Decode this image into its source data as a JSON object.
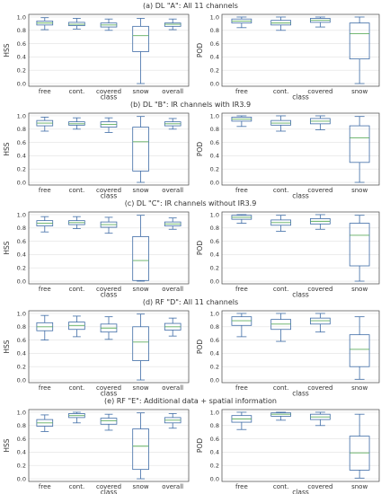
{
  "figure": {
    "rows": [
      {
        "title": "(a) DL \"A\": All 11 channels",
        "panels": [
          {
            "ylabel": "HSS",
            "xlabel": "class",
            "categories": [
              "free",
              "cont.",
              "covered",
              "snow",
              "overall"
            ],
            "boxes": [
              {
                "whislo": 0.81,
                "q1": 0.88,
                "med": 0.91,
                "q3": 0.94,
                "whishi": 0.99
              },
              {
                "whislo": 0.82,
                "q1": 0.87,
                "med": 0.89,
                "q3": 0.92,
                "whishi": 0.98
              },
              {
                "whislo": 0.8,
                "q1": 0.85,
                "med": 0.88,
                "q3": 0.91,
                "whishi": 0.97
              },
              {
                "whislo": 0.0,
                "q1": 0.48,
                "med": 0.72,
                "q3": 0.86,
                "whishi": 0.98
              },
              {
                "whislo": 0.81,
                "q1": 0.86,
                "med": 0.89,
                "q3": 0.91,
                "whishi": 0.97
              }
            ]
          },
          {
            "ylabel": "POD",
            "xlabel": "class",
            "categories": [
              "free",
              "cont.",
              "covered",
              "snow"
            ],
            "boxes": [
              {
                "whislo": 0.84,
                "q1": 0.91,
                "med": 0.94,
                "q3": 0.97,
                "whishi": 1.0
              },
              {
                "whislo": 0.8,
                "q1": 0.88,
                "med": 0.91,
                "q3": 0.95,
                "whishi": 1.0
              },
              {
                "whislo": 0.85,
                "q1": 0.92,
                "med": 0.95,
                "q3": 0.98,
                "whishi": 1.0
              },
              {
                "whislo": 0.0,
                "q1": 0.37,
                "med": 0.75,
                "q3": 0.91,
                "whishi": 1.0
              }
            ]
          }
        ]
      },
      {
        "title": "(b) DL \"B\": IR channels with IR3.9",
        "panels": [
          {
            "ylabel": "HSS",
            "xlabel": "class",
            "categories": [
              "free",
              "cont.",
              "covered",
              "snow",
              "overall"
            ],
            "boxes": [
              {
                "whislo": 0.77,
                "q1": 0.85,
                "med": 0.89,
                "q3": 0.93,
                "whishi": 0.98
              },
              {
                "whislo": 0.8,
                "q1": 0.86,
                "med": 0.88,
                "q3": 0.91,
                "whishi": 0.97
              },
              {
                "whislo": 0.75,
                "q1": 0.83,
                "med": 0.87,
                "q3": 0.91,
                "whishi": 0.97
              },
              {
                "whislo": 0.0,
                "q1": 0.17,
                "med": 0.61,
                "q3": 0.83,
                "whishi": 0.99
              },
              {
                "whislo": 0.8,
                "q1": 0.85,
                "med": 0.88,
                "q3": 0.91,
                "whishi": 0.96
              }
            ]
          },
          {
            "ylabel": "POD",
            "xlabel": "class",
            "categories": [
              "free",
              "cont.",
              "covered",
              "snow"
            ],
            "boxes": [
              {
                "whislo": 0.84,
                "q1": 0.92,
                "med": 0.95,
                "q3": 0.98,
                "whishi": 1.0
              },
              {
                "whislo": 0.77,
                "q1": 0.86,
                "med": 0.89,
                "q3": 0.93,
                "whishi": 1.0
              },
              {
                "whislo": 0.79,
                "q1": 0.88,
                "med": 0.92,
                "q3": 0.96,
                "whishi": 1.0
              },
              {
                "whislo": 0.0,
                "q1": 0.3,
                "med": 0.67,
                "q3": 0.85,
                "whishi": 0.99
              }
            ]
          }
        ]
      },
      {
        "title": "(c) DL \"C\": IR channels without IR3.9",
        "panels": [
          {
            "ylabel": "HSS",
            "xlabel": "class",
            "categories": [
              "free",
              "cont.",
              "covered",
              "snow",
              "overall"
            ],
            "boxes": [
              {
                "whislo": 0.74,
                "q1": 0.83,
                "med": 0.87,
                "q3": 0.91,
                "whishi": 0.97
              },
              {
                "whislo": 0.79,
                "q1": 0.85,
                "med": 0.88,
                "q3": 0.91,
                "whishi": 0.97
              },
              {
                "whislo": 0.72,
                "q1": 0.81,
                "med": 0.85,
                "q3": 0.89,
                "whishi": 0.96
              },
              {
                "whislo": 0.0,
                "q1": 0.01,
                "med": 0.31,
                "q3": 0.67,
                "whishi": 0.99
              },
              {
                "whislo": 0.78,
                "q1": 0.83,
                "med": 0.86,
                "q3": 0.89,
                "whishi": 0.95
              }
            ]
          },
          {
            "ylabel": "POD",
            "xlabel": "class",
            "categories": [
              "free",
              "cont.",
              "covered",
              "snow"
            ],
            "boxes": [
              {
                "whislo": 0.87,
                "q1": 0.93,
                "med": 0.96,
                "q3": 0.99,
                "whishi": 1.0
              },
              {
                "whislo": 0.75,
                "q1": 0.84,
                "med": 0.88,
                "q3": 0.92,
                "whishi": 0.99
              },
              {
                "whislo": 0.78,
                "q1": 0.86,
                "med": 0.9,
                "q3": 0.94,
                "whishi": 1.0
              },
              {
                "whislo": 0.0,
                "q1": 0.23,
                "med": 0.69,
                "q3": 0.87,
                "whishi": 0.99
              }
            ]
          }
        ]
      },
      {
        "title": "(d) RF \"D\": All 11 channels",
        "panels": [
          {
            "ylabel": "HSS",
            "xlabel": "class",
            "categories": [
              "free",
              "cont.",
              "covered",
              "snow",
              "overall"
            ],
            "boxes": [
              {
                "whislo": 0.6,
                "q1": 0.74,
                "med": 0.8,
                "q3": 0.86,
                "whishi": 0.97
              },
              {
                "whislo": 0.65,
                "q1": 0.76,
                "med": 0.82,
                "q3": 0.87,
                "whishi": 0.96
              },
              {
                "whislo": 0.61,
                "q1": 0.72,
                "med": 0.78,
                "q3": 0.84,
                "whishi": 0.95
              },
              {
                "whislo": 0.0,
                "q1": 0.29,
                "med": 0.57,
                "q3": 0.8,
                "whishi": 0.99
              },
              {
                "whislo": 0.66,
                "q1": 0.75,
                "med": 0.8,
                "q3": 0.85,
                "whishi": 0.93
              }
            ]
          },
          {
            "ylabel": "POD",
            "xlabel": "class",
            "categories": [
              "free",
              "cont.",
              "covered",
              "snow"
            ],
            "boxes": [
              {
                "whislo": 0.65,
                "q1": 0.82,
                "med": 0.89,
                "q3": 0.95,
                "whishi": 1.0
              },
              {
                "whislo": 0.58,
                "q1": 0.76,
                "med": 0.84,
                "q3": 0.91,
                "whishi": 1.0
              },
              {
                "whislo": 0.72,
                "q1": 0.84,
                "med": 0.89,
                "q3": 0.93,
                "whishi": 1.0
              },
              {
                "whislo": 0.01,
                "q1": 0.2,
                "med": 0.46,
                "q3": 0.68,
                "whishi": 0.95
              }
            ]
          }
        ]
      },
      {
        "title": "(e) RF \"E\": Additional data + spatial information",
        "panels": [
          {
            "ylabel": "HSS",
            "xlabel": "class",
            "categories": [
              "free",
              "cont.",
              "covered",
              "snow",
              "overall"
            ],
            "boxes": [
              {
                "whislo": 0.71,
                "q1": 0.79,
                "med": 0.84,
                "q3": 0.89,
                "whishi": 0.96
              },
              {
                "whislo": 0.84,
                "q1": 0.92,
                "med": 0.95,
                "q3": 0.98,
                "whishi": 1.0
              },
              {
                "whislo": 0.73,
                "q1": 0.82,
                "med": 0.87,
                "q3": 0.91,
                "whishi": 0.97
              },
              {
                "whislo": 0.0,
                "q1": 0.14,
                "med": 0.49,
                "q3": 0.75,
                "whishi": 0.99
              },
              {
                "whislo": 0.76,
                "q1": 0.84,
                "med": 0.88,
                "q3": 0.92,
                "whishi": 0.98
              }
            ]
          },
          {
            "ylabel": "POD",
            "xlabel": "class",
            "categories": [
              "free",
              "cont.",
              "covered",
              "snow"
            ],
            "boxes": [
              {
                "whislo": 0.74,
                "q1": 0.85,
                "med": 0.9,
                "q3": 0.95,
                "whishi": 1.0
              },
              {
                "whislo": 0.88,
                "q1": 0.94,
                "med": 0.97,
                "q3": 0.99,
                "whishi": 1.0
              },
              {
                "whislo": 0.8,
                "q1": 0.89,
                "med": 0.93,
                "q3": 0.97,
                "whishi": 1.0
              },
              {
                "whislo": 0.01,
                "q1": 0.13,
                "med": 0.39,
                "q3": 0.64,
                "whishi": 0.97
              }
            ]
          }
        ]
      }
    ],
    "yticks": [
      "0.0",
      "0.2",
      "0.4",
      "0.6",
      "0.8",
      "1.0"
    ],
    "ylim": [
      -0.04,
      1.04
    ],
    "colors": {
      "box": "#3f6ca6",
      "median": "#5fae5f",
      "grid": "#e2e2e2",
      "spine": "#444444"
    }
  }
}
